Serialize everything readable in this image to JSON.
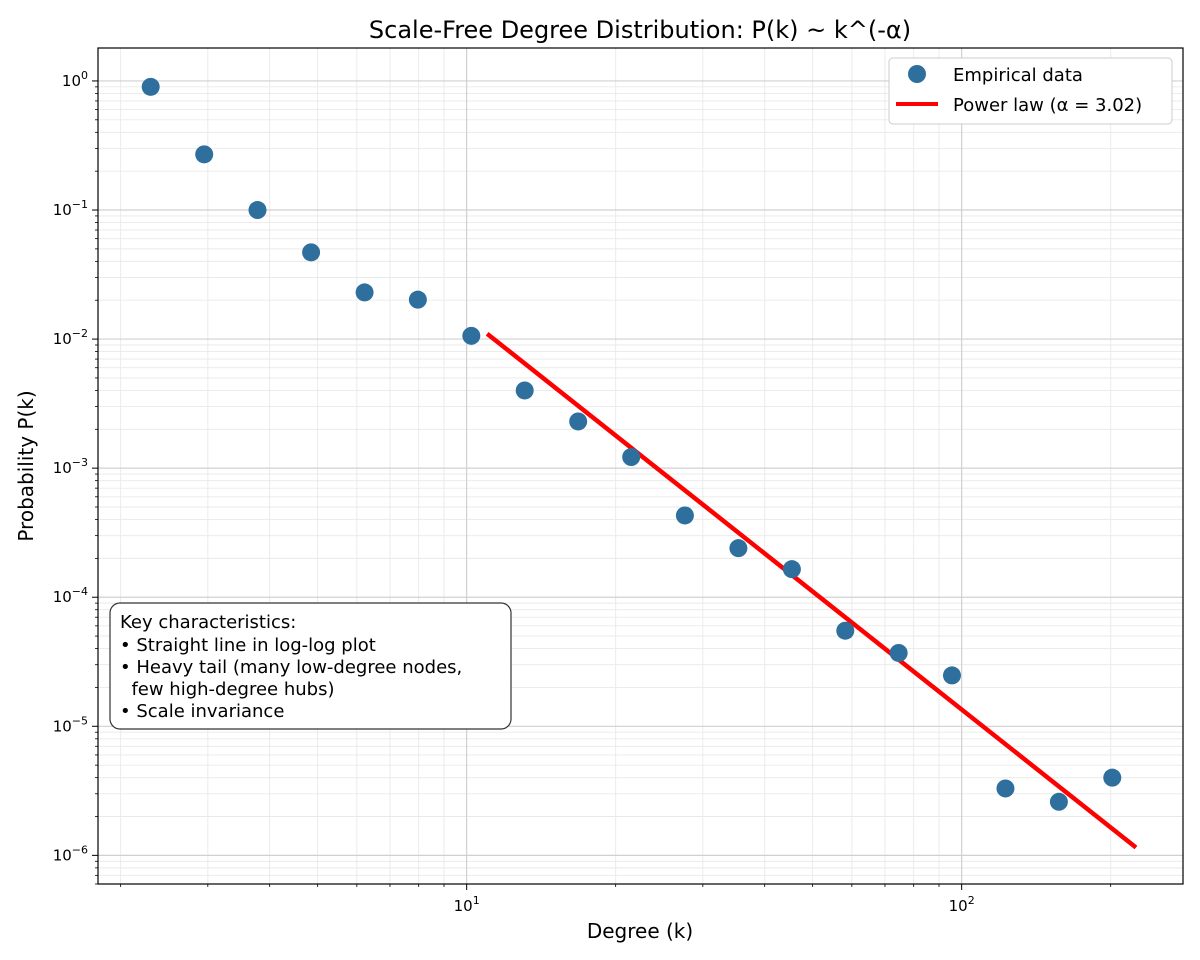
{
  "chart_data": {
    "type": "scatter",
    "title": "Scale-Free Degree Distribution: P(k) ~ k^(-α)",
    "xlabel": "Degree (k)",
    "ylabel": "Probability P(k)",
    "x_scale": "log",
    "y_scale": "log",
    "xlim": [
      1.8,
      280
    ],
    "ylim": [
      6e-07,
      1.8
    ],
    "grid": true,
    "legend_position": "top-right",
    "x_ticks": [
      {
        "value": 10,
        "base": "10",
        "exp": "1"
      },
      {
        "value": 100,
        "base": "10",
        "exp": "2"
      }
    ],
    "y_ticks": [
      {
        "value": 1,
        "base": "10",
        "exp": "0"
      },
      {
        "value": 0.1,
        "base": "10",
        "exp": "−1"
      },
      {
        "value": 0.01,
        "base": "10",
        "exp": "−2"
      },
      {
        "value": 0.001,
        "base": "10",
        "exp": "−3"
      },
      {
        "value": 0.0001,
        "base": "10",
        "exp": "−4"
      },
      {
        "value": 1e-05,
        "base": "10",
        "exp": "−5"
      },
      {
        "value": 1e-06,
        "base": "10",
        "exp": "−6"
      }
    ],
    "series": [
      {
        "name": "Empirical data",
        "kind": "scatter",
        "color": "#2e6f9e",
        "x": [
          2.3,
          2.95,
          3.78,
          4.85,
          6.22,
          7.97,
          10.22,
          13.1,
          16.8,
          21.5,
          27.6,
          35.4,
          45.4,
          58.2,
          74.6,
          95.6,
          122.6,
          157.2,
          201.5
        ],
        "y": [
          0.9,
          0.27,
          0.1,
          0.047,
          0.023,
          0.0202,
          0.0106,
          0.004,
          0.0023,
          0.00122,
          0.00043,
          0.00024,
          0.000165,
          5.5e-05,
          3.7e-05,
          2.48e-05,
          3.3e-06,
          2.6e-06,
          4e-06
        ]
      },
      {
        "name": "Power law (α = 3.02)",
        "kind": "line",
        "color": "#ff0000",
        "x": [
          11,
          225
        ],
        "y": [
          0.011,
          1.15e-06
        ]
      }
    ],
    "annotation": {
      "lines": [
        "Key characteristics:",
        "• Straight line in log-log plot",
        "• Heavy tail (many low-degree nodes,",
        "  few high-degree hubs)",
        "• Scale invariance"
      ]
    }
  }
}
